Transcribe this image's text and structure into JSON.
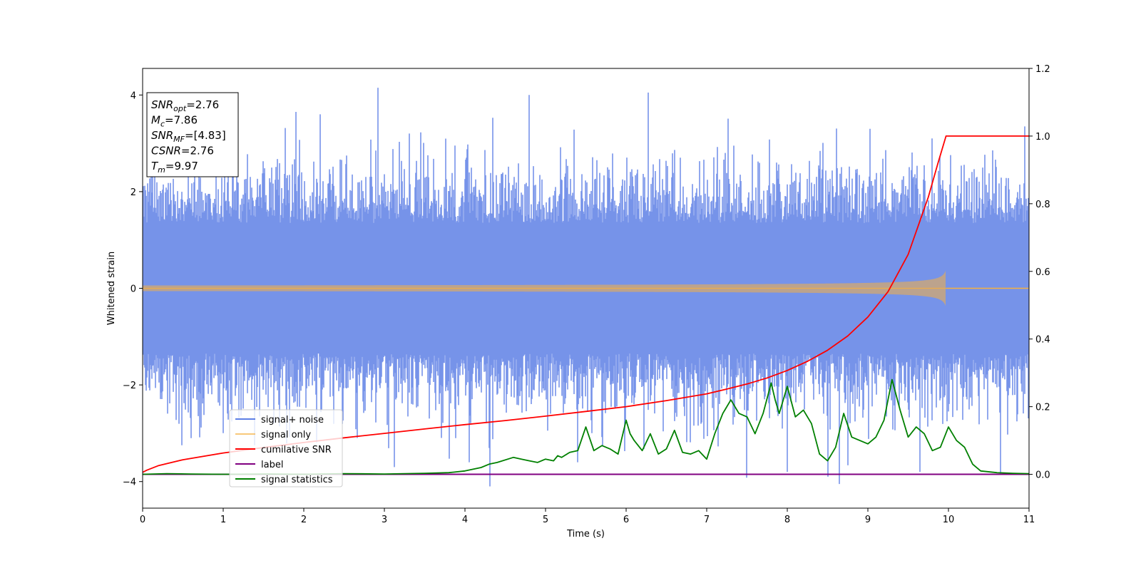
{
  "chart_data": {
    "type": "line",
    "xlabel": "Time (s)",
    "ylabel": "Whitened strain",
    "xlim": [
      0,
      11
    ],
    "ylim_left": [
      -4.55,
      4.55
    ],
    "ylim_right": [
      -0.1,
      1.2
    ],
    "xticks": [
      "0",
      "1",
      "2",
      "3",
      "4",
      "5",
      "6",
      "7",
      "8",
      "9",
      "10",
      "11"
    ],
    "yticks_left": [
      "−4",
      "−2",
      "0",
      "2",
      "4"
    ],
    "yticks_right": [
      "0.0",
      "0.2",
      "0.4",
      "0.6",
      "0.8",
      "1.0",
      "1.2"
    ],
    "grid": false,
    "legend_position": "lower-left",
    "info_box": {
      "position": "top-left",
      "lines": [
        {
          "sym": "SNR",
          "sub": "opt",
          "val": "=2.76"
        },
        {
          "sym": "M",
          "sub": "c",
          "val": "=7.86"
        },
        {
          "sym": "SNR",
          "sub": "MF",
          "val": "=[4.83]"
        },
        {
          "sym": "CSNR",
          "sub": "",
          "val": "=2.76"
        },
        {
          "sym": "T",
          "sub": "m",
          "val": "=9.97"
        }
      ]
    },
    "series": [
      {
        "name": "signal+ noise",
        "axis": "left",
        "color": "#4169e1",
        "opacity": 0.72,
        "style": "dense-noise",
        "envelope_typical": [
          -2.4,
          2.4
        ],
        "spikes": [
          {
            "x": 2.92,
            "y": 4.15
          },
          {
            "x": 4.31,
            "y": -4.1
          },
          {
            "x": 8.65,
            "y": -4.05
          },
          {
            "x": 3.12,
            "y": -3.7
          },
          {
            "x": 4.05,
            "y": -3.6
          },
          {
            "x": 8.0,
            "y": -3.8
          },
          {
            "x": 8.5,
            "y": -3.9
          },
          {
            "x": 9.65,
            "y": -3.8
          },
          {
            "x": 10.95,
            "y": 3.35
          },
          {
            "x": 1.9,
            "y": 3.65
          },
          {
            "x": 2.2,
            "y": 3.6
          },
          {
            "x": 4.8,
            "y": 4.0
          },
          {
            "x": 6.27,
            "y": 4.05
          },
          {
            "x": 0.15,
            "y": 3.7
          },
          {
            "x": 5.4,
            "y": -3.6
          },
          {
            "x": 0.6,
            "y": -3.1
          },
          {
            "x": 9.8,
            "y": 3.1
          }
        ]
      },
      {
        "name": "signal only",
        "axis": "left",
        "color": "#f5b041",
        "style": "chirp",
        "merger_time": 9.97,
        "peak_amplitude": 0.38
      },
      {
        "name": "cumilative SNR",
        "axis": "right",
        "color": "#ff0000",
        "x": [
          0,
          0.05,
          0.2,
          0.5,
          1,
          1.5,
          2,
          2.5,
          3,
          3.5,
          4,
          4.5,
          5,
          5.5,
          6,
          6.5,
          7,
          7.25,
          7.5,
          7.75,
          8,
          8.25,
          8.5,
          8.75,
          9,
          9.25,
          9.5,
          9.75,
          9.87,
          9.97,
          10.2,
          10.6,
          11
        ],
        "y": [
          0.006,
          0.012,
          0.026,
          0.043,
          0.063,
          0.079,
          0.094,
          0.108,
          0.121,
          0.134,
          0.147,
          0.159,
          0.172,
          0.186,
          0.2,
          0.218,
          0.238,
          0.252,
          0.267,
          0.285,
          0.307,
          0.334,
          0.367,
          0.409,
          0.465,
          0.54,
          0.65,
          0.82,
          0.92,
          1.0,
          1.0,
          1.0,
          1.0
        ]
      },
      {
        "name": "label",
        "axis": "right",
        "color": "#800080",
        "x": [
          0,
          11
        ],
        "y": [
          0,
          0
        ]
      },
      {
        "name": "signal statistics",
        "axis": "right",
        "color": "#008000",
        "x": [
          0,
          0.3,
          0.6,
          1.0,
          1.5,
          2.0,
          2.5,
          3.0,
          3.5,
          3.8,
          4.0,
          4.1,
          4.2,
          4.3,
          4.4,
          4.6,
          4.7,
          4.8,
          4.9,
          5.0,
          5.1,
          5.15,
          5.2,
          5.3,
          5.4,
          5.5,
          5.6,
          5.7,
          5.8,
          5.9,
          6.0,
          6.05,
          6.1,
          6.2,
          6.3,
          6.4,
          6.5,
          6.6,
          6.7,
          6.8,
          6.9,
          7.0,
          7.1,
          7.2,
          7.3,
          7.4,
          7.5,
          7.6,
          7.7,
          7.8,
          7.85,
          7.9,
          8.0,
          8.1,
          8.2,
          8.3,
          8.4,
          8.5,
          8.6,
          8.7,
          8.8,
          8.9,
          9.0,
          9.1,
          9.2,
          9.3,
          9.4,
          9.5,
          9.6,
          9.7,
          9.8,
          9.9,
          10.0,
          10.1,
          10.2,
          10.3,
          10.4,
          10.6,
          10.8,
          11.0
        ],
        "y": [
          0.0,
          0.002,
          0.001,
          0.0,
          0.001,
          0.0,
          0.002,
          0.001,
          0.003,
          0.005,
          0.01,
          0.015,
          0.02,
          0.03,
          0.035,
          0.05,
          0.045,
          0.04,
          0.035,
          0.045,
          0.04,
          0.055,
          0.05,
          0.065,
          0.07,
          0.14,
          0.07,
          0.085,
          0.075,
          0.06,
          0.16,
          0.12,
          0.1,
          0.07,
          0.12,
          0.06,
          0.075,
          0.13,
          0.065,
          0.06,
          0.07,
          0.045,
          0.12,
          0.18,
          0.22,
          0.18,
          0.17,
          0.12,
          0.18,
          0.27,
          0.22,
          0.18,
          0.26,
          0.17,
          0.19,
          0.15,
          0.06,
          0.04,
          0.08,
          0.18,
          0.11,
          0.1,
          0.09,
          0.11,
          0.16,
          0.28,
          0.19,
          0.11,
          0.14,
          0.12,
          0.07,
          0.08,
          0.14,
          0.1,
          0.08,
          0.03,
          0.01,
          0.005,
          0.003,
          0.002
        ]
      }
    ]
  }
}
